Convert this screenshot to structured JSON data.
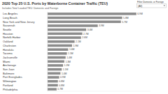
{
  "chart_data": {
    "type": "bar",
    "orientation": "horizontal",
    "title": "2020 Top 25 U.S. Ports by Waterborne Container Traffic (TEU)",
    "subtitle": "Includes Total Loaded TEU: Domestic and Foreign",
    "categories": [
      "Los Angeles",
      "Long Beach",
      "New York and New Jersey",
      "Savannah",
      "Seattle",
      "Houston",
      "Norfolk Harbor",
      "Oakland",
      "Charleston",
      "Honolulu",
      "Tacoma",
      "Jacksonville",
      "Miami",
      "Anchorage",
      "San Juan",
      "Baltimore",
      "Port Everglades",
      "Wilmington",
      "Portland",
      "Philadelphia"
    ],
    "values": [
      6900000,
      5800000,
      5700000,
      3900000,
      3000000,
      2700000,
      2600000,
      2100000,
      1900000,
      1600000,
      1500000,
      1400000,
      1300000,
      1200000,
      1100000,
      1000000,
      900000,
      800000,
      800000,
      700000
    ],
    "value_labels": [
      "6.9M",
      "5.8M",
      "5.7M",
      "3.9M",
      "3.0M",
      "2.7M",
      "2.6M",
      "2.1M",
      "1.9M",
      "1.6M",
      "1.5M",
      "1.4M",
      "1.3M",
      "1.2M",
      "1.1M",
      "1.0M",
      "0.9M",
      "0.8M",
      "0.8M",
      "0.7M"
    ],
    "color": "#8c8c8c",
    "xlim": [
      0,
      8000000
    ],
    "data_labels": true,
    "tick_labels": "y",
    "grid": false
  },
  "filter": {
    "label": "Filter Domestic or Foreign",
    "value": "(All)"
  }
}
